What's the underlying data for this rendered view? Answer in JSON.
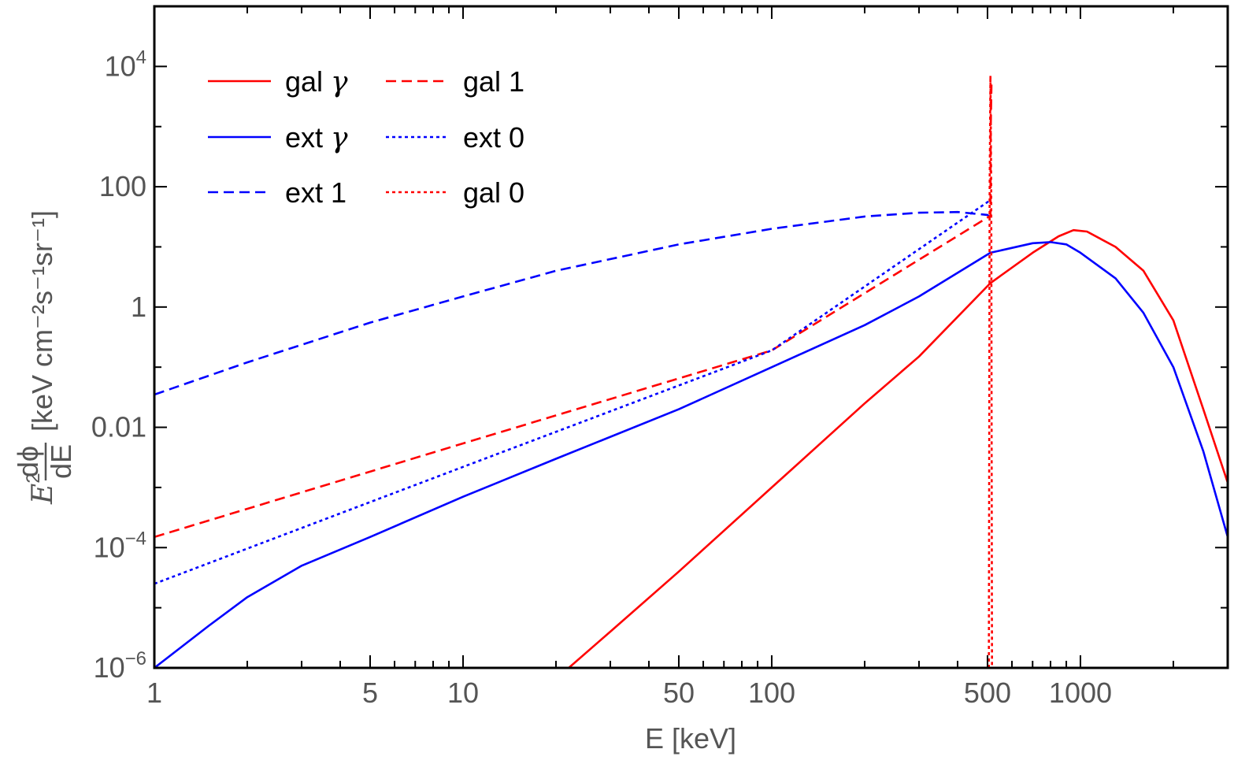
{
  "chart_data": {
    "type": "line",
    "xscale": "log",
    "yscale": "log",
    "xlabel": "E [keV]",
    "ylabel": {
      "prefix": "E",
      "prefix_sup": "2",
      "frac_num": "dϕ",
      "frac_den": "dE",
      "units": "[keV cm⁻²s⁻¹sr⁻¹]"
    },
    "xlim": [
      1,
      3000
    ],
    "ylim": [
      1e-06,
      100000
    ],
    "xticks": [
      {
        "value": 1,
        "label": "1"
      },
      {
        "value": 5,
        "label": "5"
      },
      {
        "value": 10,
        "label": "10"
      },
      {
        "value": 50,
        "label": "50"
      },
      {
        "value": 100,
        "label": "100"
      },
      {
        "value": 500,
        "label": "500"
      },
      {
        "value": 1000,
        "label": "1000"
      }
    ],
    "yticks": [
      {
        "value": 1e-06,
        "base": "10",
        "exp": "−6"
      },
      {
        "value": 0.0001,
        "base": "10",
        "exp": "−4"
      },
      {
        "value": 0.01,
        "base": "0.01",
        "exp": ""
      },
      {
        "value": 1,
        "base": "1",
        "exp": ""
      },
      {
        "value": 100,
        "base": "100",
        "exp": ""
      },
      {
        "value": 10000,
        "base": "10",
        "exp": "4"
      }
    ],
    "legend": {
      "placement": "top-left",
      "columns": 2,
      "entries": [
        {
          "series": "gal_gamma",
          "text": "gal ",
          "symbol": "γ"
        },
        {
          "series": "gal_1",
          "text": "gal 1",
          "symbol": ""
        },
        {
          "series": "ext_gamma",
          "text": "ext ",
          "symbol": "γ"
        },
        {
          "series": "ext_0",
          "text": "ext 0",
          "symbol": ""
        },
        {
          "series": "ext_1",
          "text": "ext 1",
          "symbol": ""
        },
        {
          "series": "gal_0",
          "text": "gal 0",
          "symbol": ""
        }
      ]
    },
    "series": [
      {
        "id": "gal_gamma",
        "name": "gal γ",
        "color": "#ff0000",
        "style": "solid",
        "x": [
          22,
          30,
          50,
          100,
          200,
          300,
          511,
          700,
          850,
          950,
          1050,
          1300,
          1600,
          2000,
          2500,
          3000
        ],
        "y": [
          1e-06,
          4e-06,
          4e-05,
          0.001,
          0.025,
          0.15,
          2.5,
          8,
          15,
          19,
          18,
          10,
          4,
          0.6,
          0.02,
          0.0012
        ]
      },
      {
        "id": "ext_gamma",
        "name": "ext γ",
        "color": "#0000ff",
        "style": "solid",
        "x": [
          1,
          1.5,
          2,
          3,
          5,
          10,
          20,
          50,
          100,
          200,
          300,
          511,
          700,
          800,
          900,
          1000,
          1300,
          1600,
          2000,
          2500,
          3000
        ],
        "y": [
          1e-06,
          5e-06,
          1.5e-05,
          5e-05,
          0.00015,
          0.0007,
          0.003,
          0.02,
          0.1,
          0.5,
          1.5,
          8,
          11.5,
          12,
          11,
          8,
          3,
          0.8,
          0.1,
          0.004,
          0.00015
        ]
      },
      {
        "id": "ext_1",
        "name": "ext 1",
        "color": "#0000ff",
        "style": "dashed",
        "x": [
          1,
          2,
          5,
          10,
          20,
          50,
          100,
          200,
          300,
          400,
          500,
          511
        ],
        "y": [
          0.035,
          0.12,
          0.55,
          1.5,
          4,
          11,
          20,
          32,
          37,
          38,
          34,
          30
        ]
      },
      {
        "id": "gal_1",
        "name": "gal 1",
        "color": "#ff0000",
        "style": "dashed",
        "x": [
          1,
          10,
          100,
          511,
          512,
          515
        ],
        "y": [
          0.00015,
          0.0054,
          0.19,
          33,
          800,
          5000
        ]
      },
      {
        "id": "ext_0",
        "name": "ext 0",
        "color": "#0000ff",
        "style": "dotted",
        "x": [
          1,
          10,
          100,
          511
        ],
        "y": [
          2.5e-05,
          0.0022,
          0.19,
          60
        ]
      },
      {
        "id": "gal_0",
        "name": "gal 0",
        "color": "#ff0000",
        "style": "dotted",
        "x": [
          505,
          508,
          511,
          514,
          517
        ],
        "y": [
          1e-06,
          100,
          7000,
          100,
          1e-06
        ]
      }
    ]
  }
}
